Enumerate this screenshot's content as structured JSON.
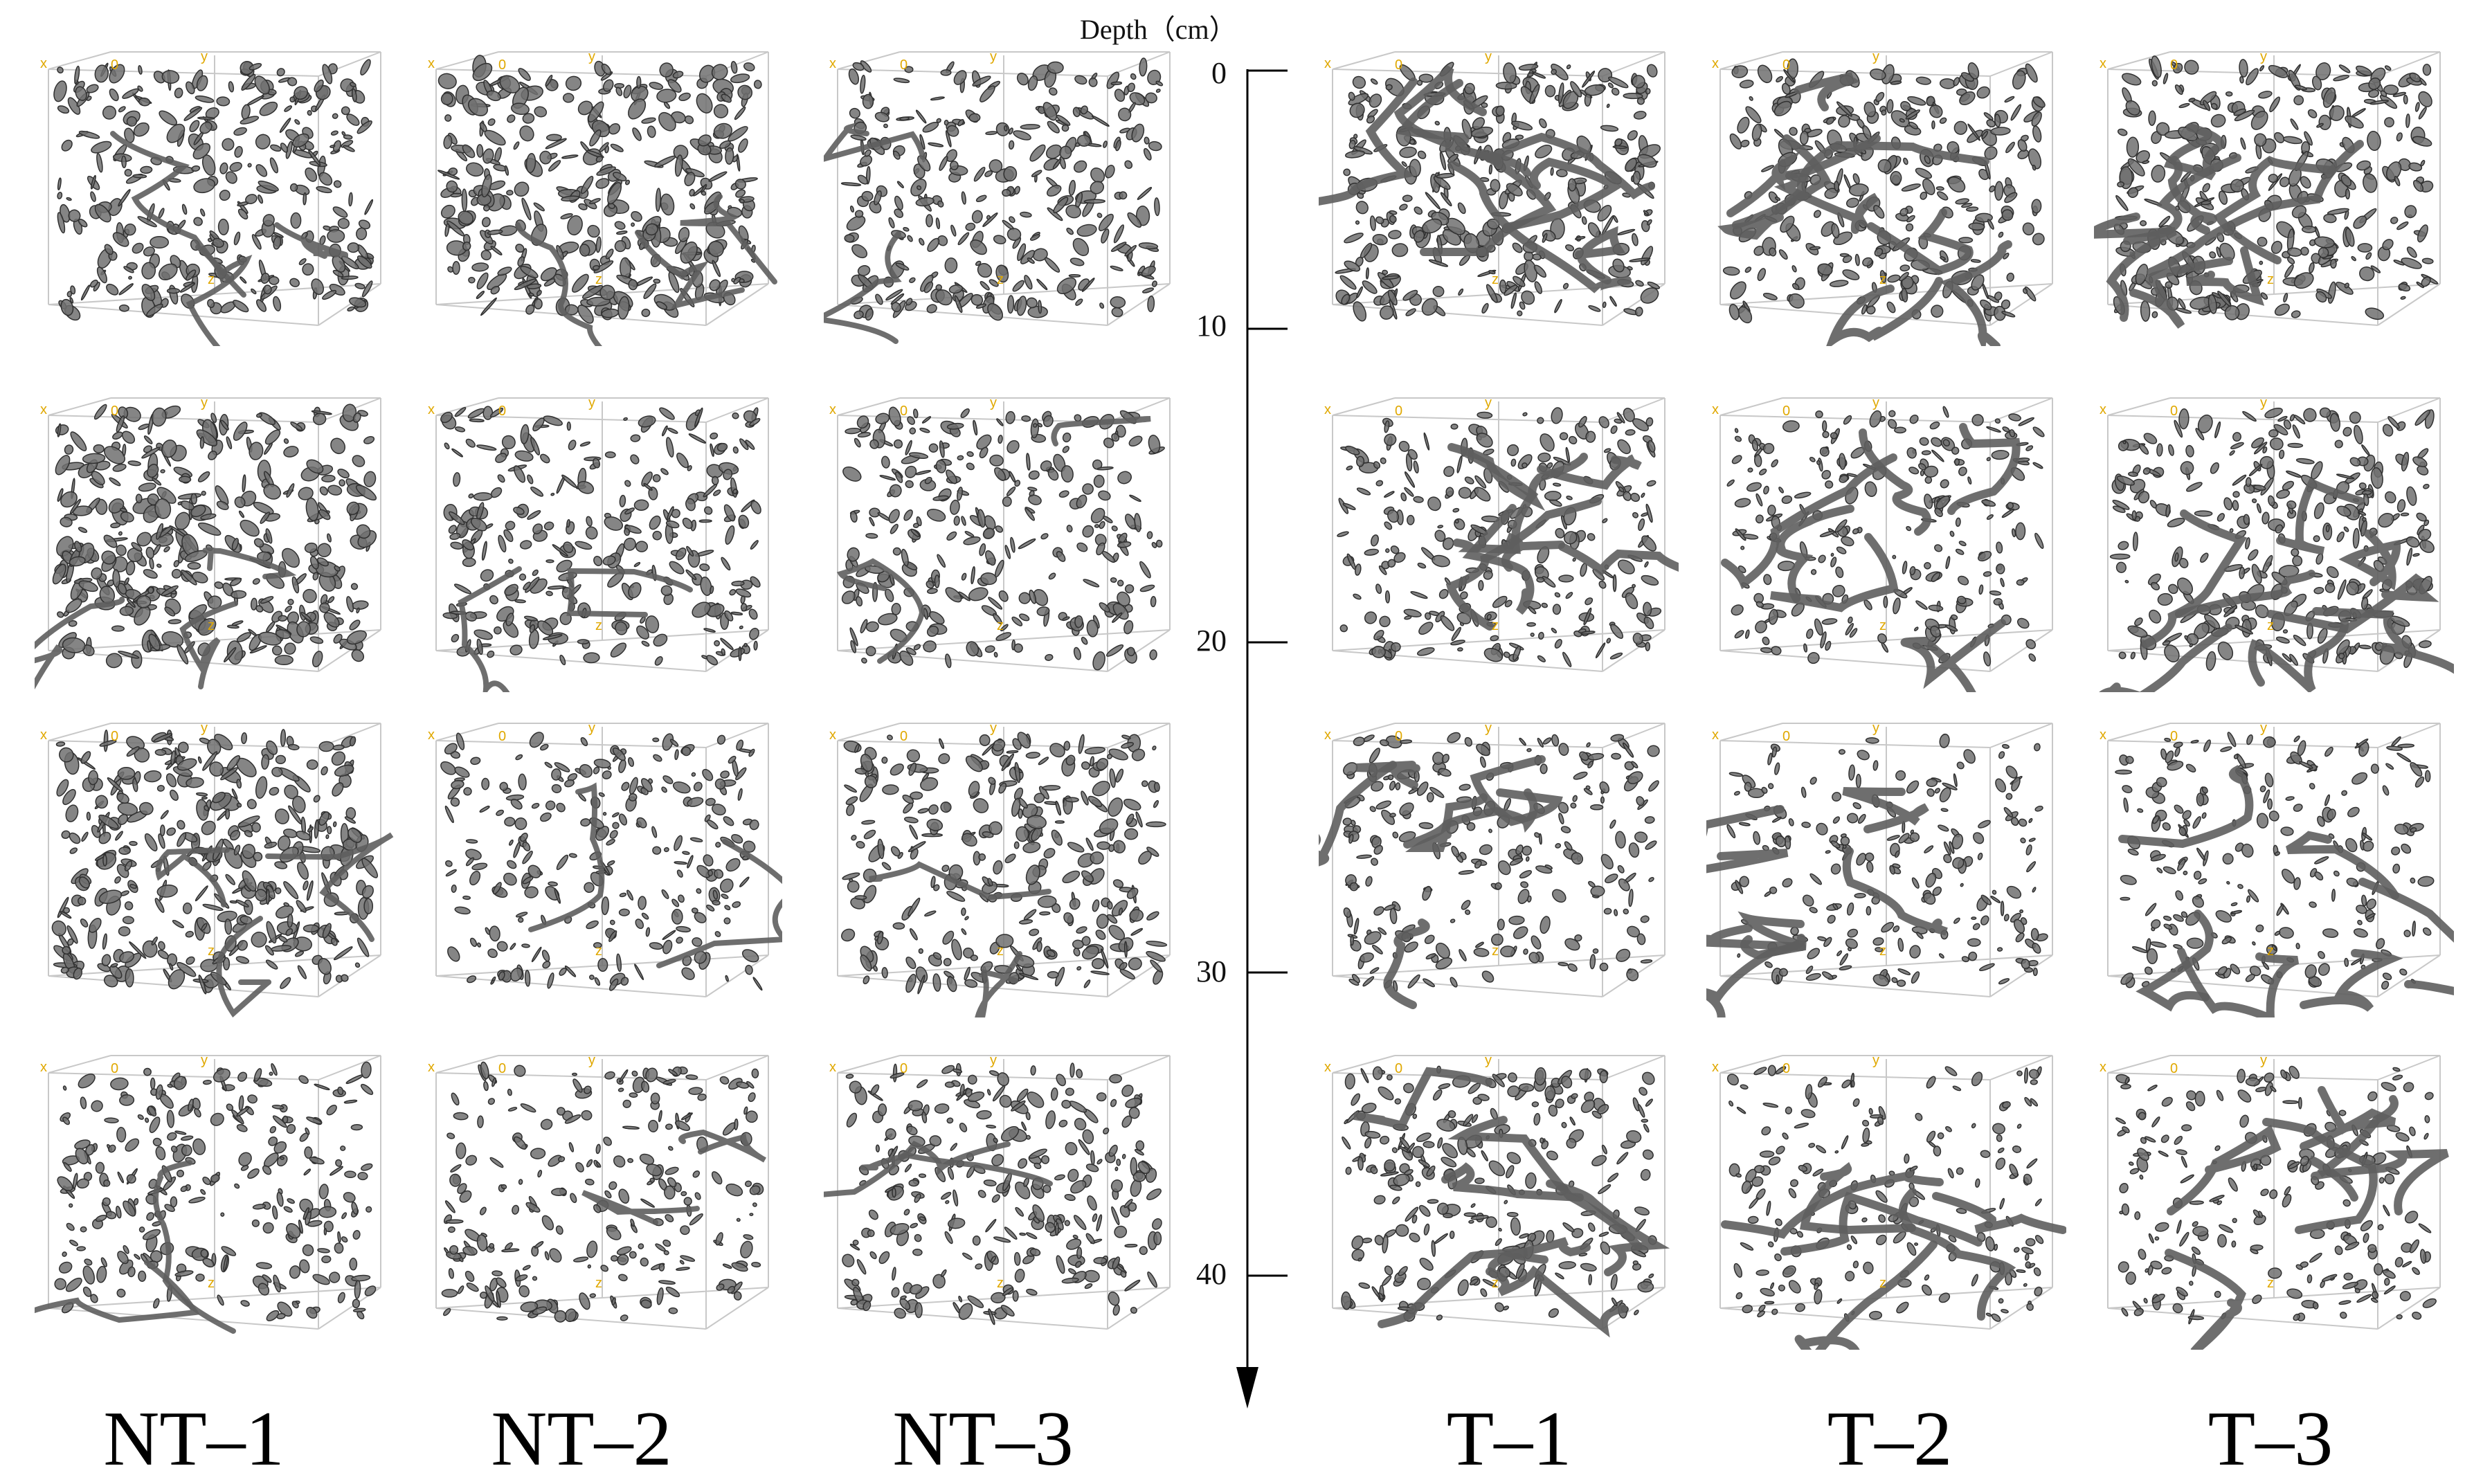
{
  "axis": {
    "title": "Depth（cm）",
    "ticks": [
      "0",
      "10",
      "20",
      "30",
      "40"
    ]
  },
  "columns": [
    {
      "id": "nt1",
      "label": "NT–1"
    },
    {
      "id": "nt2",
      "label": "NT–2"
    },
    {
      "id": "nt3",
      "label": "NT–3"
    },
    {
      "id": "t1",
      "label": "T–1"
    },
    {
      "id": "t2",
      "label": "T–2"
    },
    {
      "id": "t3",
      "label": "T–3"
    }
  ],
  "rows": [
    {
      "id": "r1"
    },
    {
      "id": "r2"
    },
    {
      "id": "r3"
    },
    {
      "id": "r4"
    }
  ],
  "axis_letters": [
    "x",
    "y",
    "z",
    "0"
  ],
  "colors": {
    "pore": "#707070",
    "pore_edge": "#303030",
    "box_line": "#c8c8c8",
    "axis_letter": "#e0a800",
    "text": "#111111"
  },
  "panel_density": [
    [
      0.75,
      0.9,
      0.7,
      0.8,
      0.7,
      0.8
    ],
    [
      0.95,
      0.65,
      0.6,
      0.55,
      0.45,
      0.7
    ],
    [
      0.9,
      0.5,
      0.7,
      0.45,
      0.35,
      0.4
    ],
    [
      0.55,
      0.45,
      0.6,
      0.55,
      0.3,
      0.35
    ]
  ]
}
